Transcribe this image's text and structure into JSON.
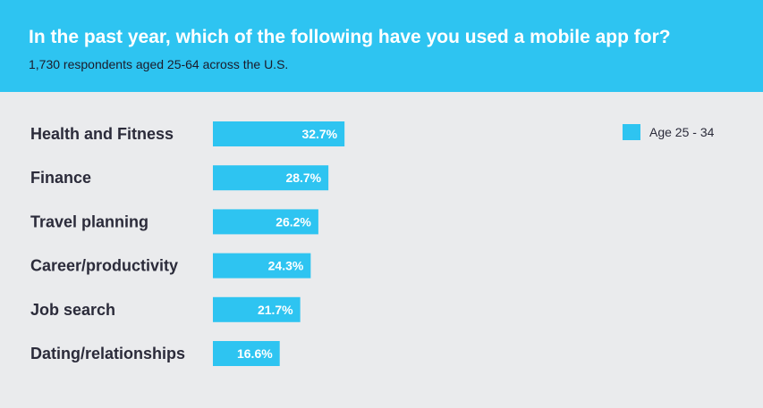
{
  "header": {
    "title": "In the past year, which of the following have you used a mobile app for?",
    "subtitle": "1,730 respondents aged 25-64 across the U.S.",
    "background": "#2ec4f1"
  },
  "legend": {
    "label": "Age 25 - 34",
    "color": "#2ec4f1"
  },
  "chart_data": {
    "type": "bar",
    "orientation": "horizontal",
    "title": "In the past year, which of the following have you used a mobile app for?",
    "subtitle": "1,730 respondents aged 25-64 across the U.S.",
    "categories": [
      "Health and Fitness",
      "Finance",
      "Travel planning",
      "Career/productivity",
      "Job search",
      "Dating/relationships"
    ],
    "series": [
      {
        "name": "Age 25 - 34",
        "values": [
          32.7,
          28.7,
          26.2,
          24.3,
          21.7,
          16.6
        ],
        "labels": [
          "32.7%",
          "28.7%",
          "26.2%",
          "24.3%",
          "21.7%",
          "16.6%"
        ],
        "color": "#2ec4f1"
      }
    ],
    "xlim": [
      0,
      100
    ],
    "grid": false,
    "legend_position": "top-right"
  }
}
